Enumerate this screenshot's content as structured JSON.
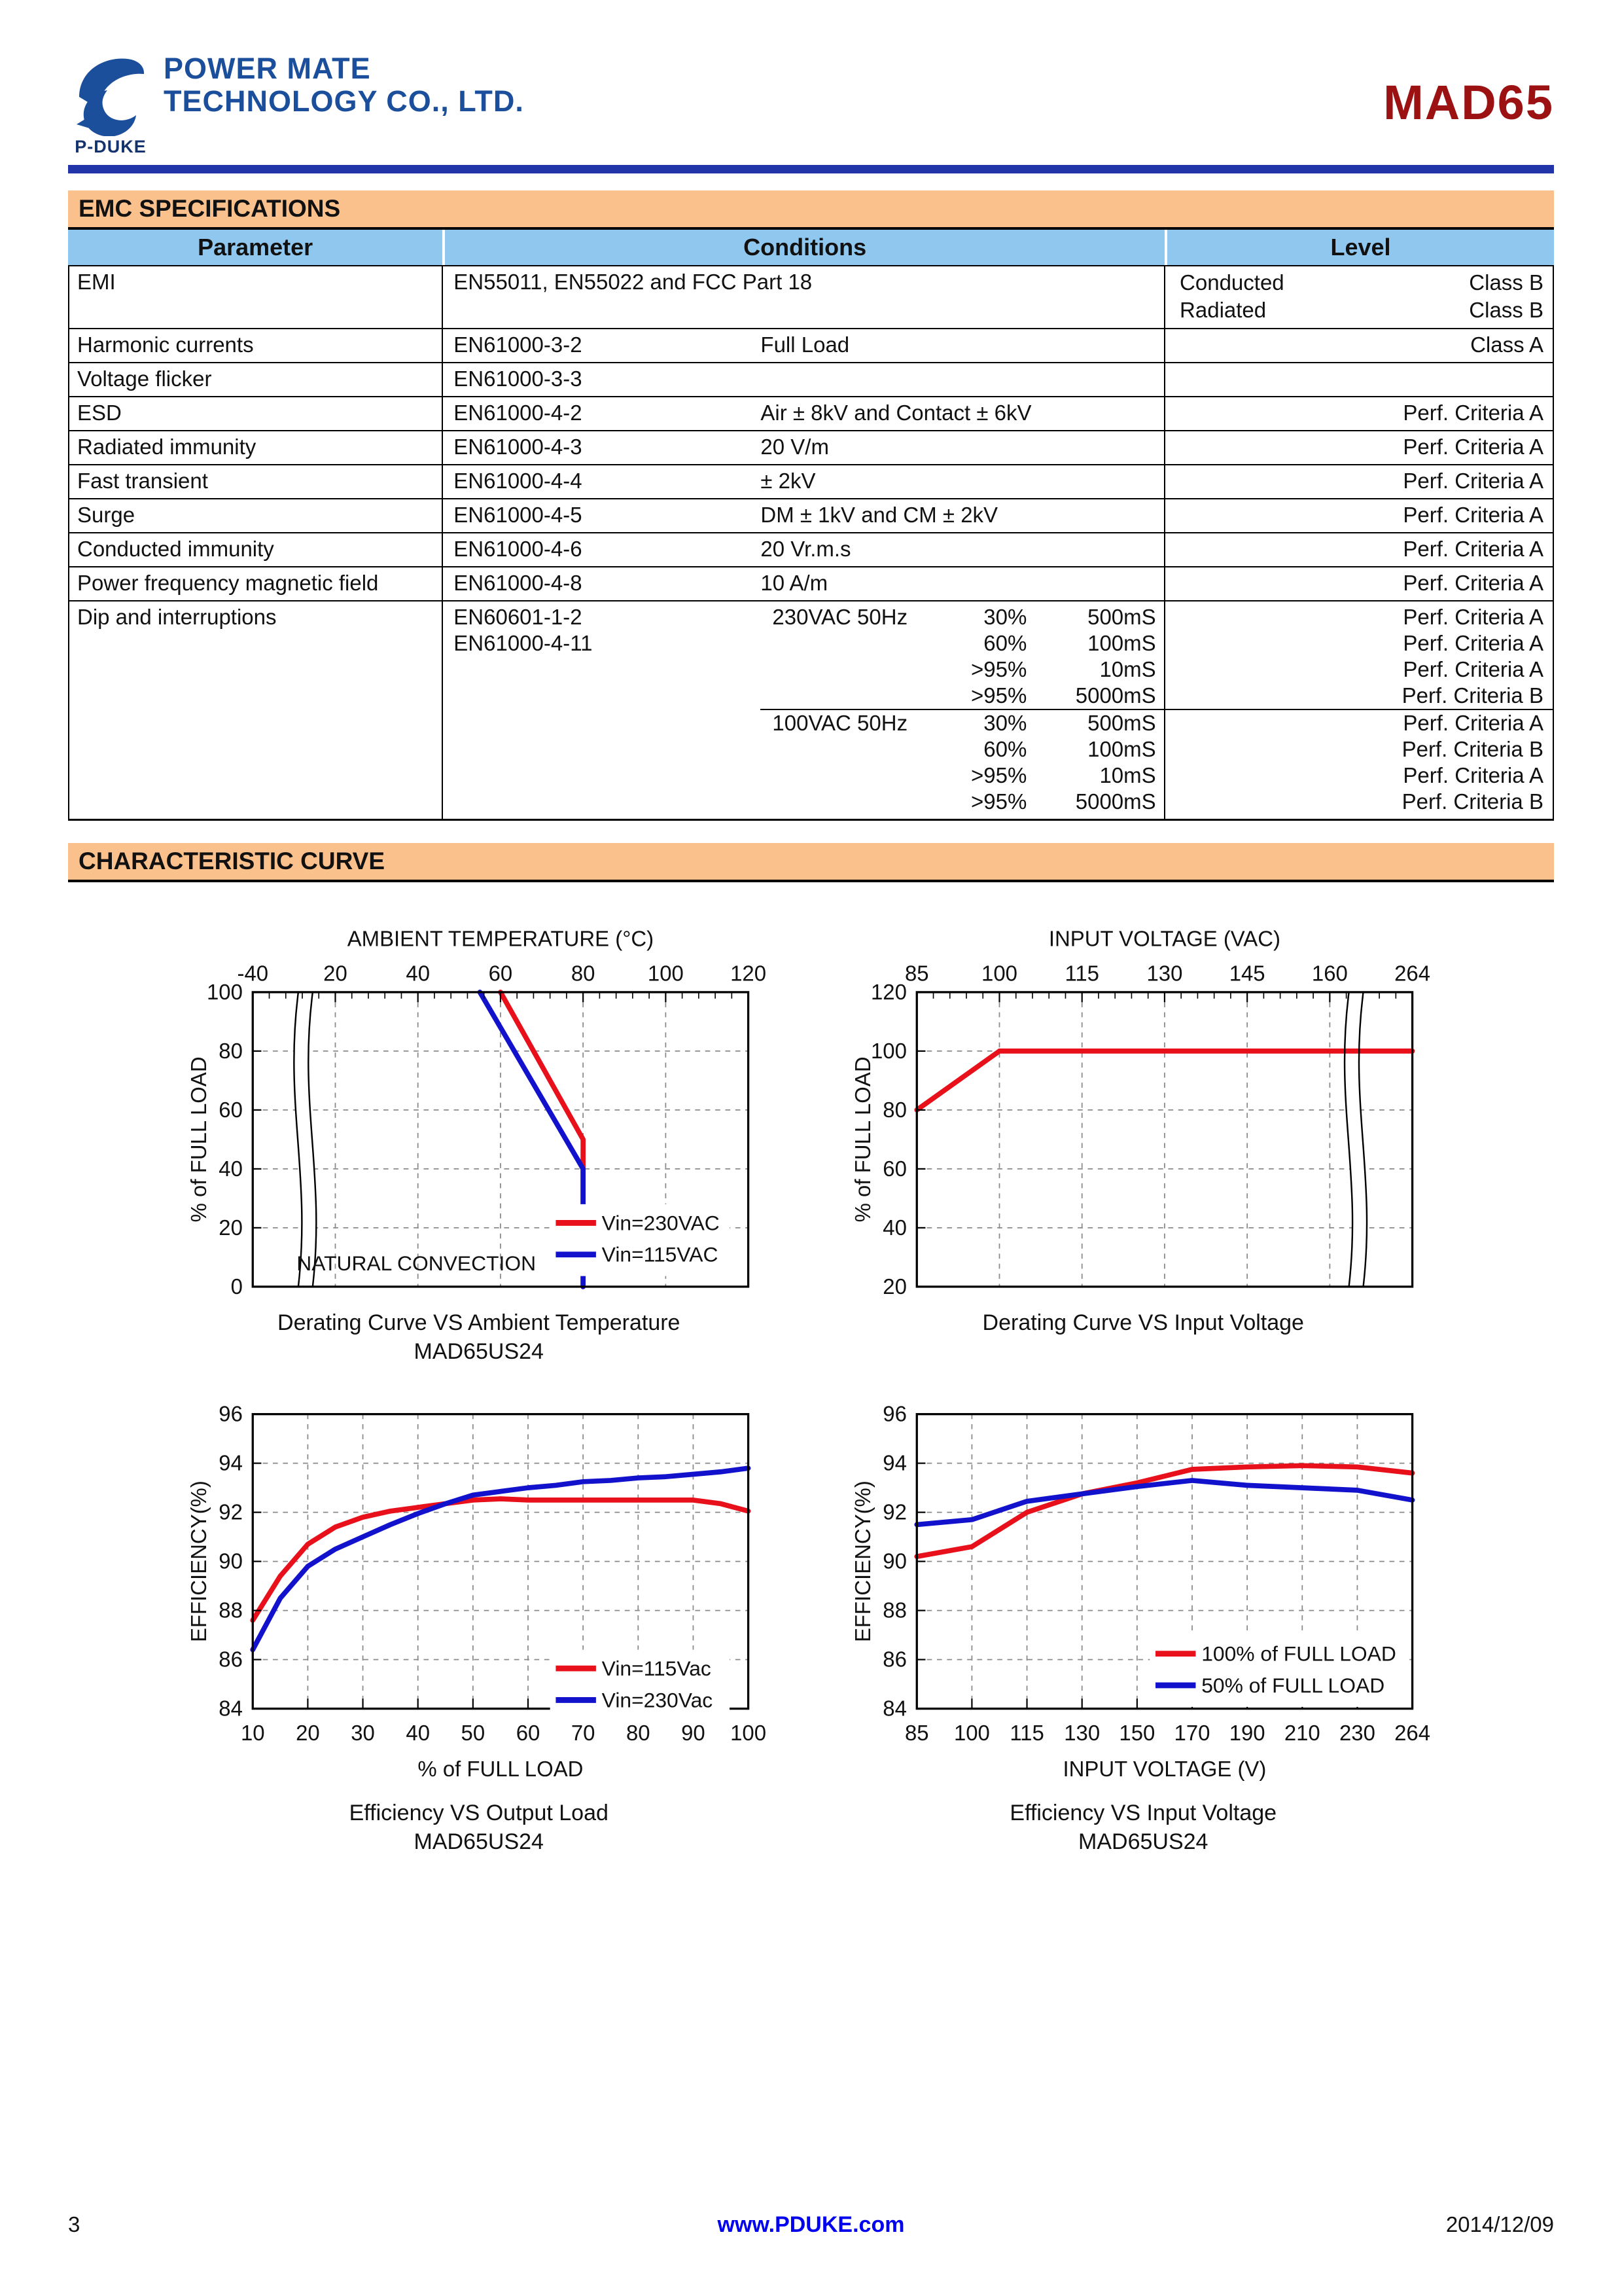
{
  "header": {
    "logo_mark": "P-DUKE",
    "logo_line1": "POWER MATE",
    "logo_line2": "TECHNOLOGY CO., LTD.",
    "product": "MAD65"
  },
  "colors": {
    "section_bar_orange": "#FAC18C",
    "table_header_blue": "#8FC7EE",
    "product_title_red": "#9C1111",
    "logo_blue": "#1B4E9B",
    "header_rule_blue": "#2135A8",
    "footer_link_blue": "#0000EE",
    "series_red": "#E8101A",
    "series_blue": "#1212CC"
  },
  "emc": {
    "section_title": "EMC SPECIFICATIONS",
    "columns": [
      "Parameter",
      "Conditions",
      "Level"
    ],
    "rows": [
      {
        "param": "EMI",
        "cond_span": "EN55011, EN55022 and FCC Part 18",
        "level_pairs": [
          [
            "Conducted",
            "Class B"
          ],
          [
            "Radiated",
            "Class B"
          ]
        ]
      },
      {
        "param": "Harmonic currents",
        "std": "EN61000-3-2",
        "detail": "Full Load",
        "level": "Class A"
      },
      {
        "param": "Voltage flicker",
        "std": "EN61000-3-3",
        "detail": "",
        "level": ""
      },
      {
        "param": "ESD",
        "std": "EN61000-4-2",
        "detail": "Air ± 8kV and Contact ± 6kV",
        "level": "Perf. Criteria A"
      },
      {
        "param": "Radiated immunity",
        "std": "EN61000-4-3",
        "detail": "20 V/m",
        "level": "Perf. Criteria A"
      },
      {
        "param": "Fast transient",
        "std": "EN61000-4-4",
        "detail": "± 2kV",
        "level": "Perf. Criteria A"
      },
      {
        "param": "Surge",
        "std": "EN61000-4-5",
        "detail": "DM ± 1kV and CM ± 2kV",
        "level": "Perf. Criteria A"
      },
      {
        "param": "Conducted immunity",
        "std": "EN61000-4-6",
        "detail": "20 Vr.m.s",
        "level": "Perf. Criteria A"
      },
      {
        "param": "Power frequency magnetic field",
        "std": "EN61000-4-8",
        "detail": "10 A/m",
        "level": "Perf. Criteria A"
      }
    ],
    "dip": {
      "param": "Dip and interruptions",
      "stds": [
        "EN60601-1-2",
        "EN61000-4-11"
      ],
      "blocks": [
        {
          "label": "230VAC 50Hz",
          "rows": [
            [
              "30%",
              "500mS",
              "Perf. Criteria A"
            ],
            [
              "60%",
              "100mS",
              "Perf. Criteria A"
            ],
            [
              ">95%",
              "10mS",
              "Perf. Criteria A"
            ],
            [
              ">95%",
              "5000mS",
              "Perf. Criteria B"
            ]
          ]
        },
        {
          "label": "100VAC 50Hz",
          "rows": [
            [
              "30%",
              "500mS",
              "Perf. Criteria A"
            ],
            [
              "60%",
              "100mS",
              "Perf. Criteria B"
            ],
            [
              ">95%",
              "10mS",
              "Perf. Criteria A"
            ],
            [
              ">95%",
              "5000mS",
              "Perf. Criteria B"
            ]
          ]
        }
      ]
    }
  },
  "curves": {
    "section_title": "CHARACTERISTIC CURVE"
  },
  "chart_data": [
    {
      "id": "derating-vs-ambient-temperature",
      "type": "line",
      "x_axis": "top",
      "minor_ticks": true,
      "grid": true,
      "xlabel": "AMBIENT TEMPERATURE (°C)",
      "ylabel": "% of FULL LOAD",
      "xticks": [
        -40,
        20,
        40,
        60,
        80,
        100,
        120
      ],
      "yticks": [
        0,
        20,
        40,
        60,
        80,
        100
      ],
      "ylim": [
        0,
        100
      ],
      "breaks": [
        0.105
      ],
      "series": [
        {
          "name": "Vin=230VAC",
          "color": "#E8101A",
          "points": [
            [
              60,
              100
            ],
            [
              80,
              50
            ],
            [
              80,
              0
            ]
          ]
        },
        {
          "name": "Vin=115VAC",
          "color": "#1212CC",
          "points": [
            [
              55,
              100
            ],
            [
              80,
              40
            ],
            [
              80,
              0
            ]
          ]
        }
      ],
      "legend": {
        "x": 0.6,
        "y": 0.72
      },
      "annotations": [
        {
          "text": "NATURAL CONVECTION",
          "x": 0.33,
          "y": 0.945
        }
      ],
      "caption": [
        "Derating Curve VS Ambient Temperature",
        "MAD65US24"
      ]
    },
    {
      "id": "derating-vs-input-voltage",
      "type": "line",
      "x_axis": "top",
      "minor_ticks": true,
      "grid": true,
      "xlabel": "INPUT VOLTAGE (VAC)",
      "ylabel": "% of FULL LOAD",
      "xticks": [
        85,
        100,
        115,
        130,
        145,
        160,
        264
      ],
      "yticks": [
        20,
        40,
        60,
        80,
        100,
        120
      ],
      "ylim": [
        20,
        120
      ],
      "breaks": [
        0.885
      ],
      "series": [
        {
          "name": "",
          "color": "#E8101A",
          "points": [
            [
              85,
              80
            ],
            [
              100,
              100
            ],
            [
              264,
              100
            ]
          ]
        }
      ],
      "caption": [
        "Derating Curve VS Input Voltage"
      ]
    },
    {
      "id": "efficiency-vs-output-load",
      "type": "line",
      "x_axis": "bottom",
      "grid": true,
      "xlabel": "% of FULL LOAD",
      "ylabel": "EFFICIENCY(%)",
      "xticks": [
        10,
        20,
        30,
        40,
        50,
        60,
        70,
        80,
        90,
        100
      ],
      "yticks": [
        84,
        86,
        88,
        90,
        92,
        94,
        96
      ],
      "ylim": [
        84,
        96
      ],
      "series": [
        {
          "name": "Vin=115Vac",
          "color": "#E8101A",
          "points": [
            [
              10,
              87.6
            ],
            [
              15,
              89.4
            ],
            [
              20,
              90.7
            ],
            [
              25,
              91.4
            ],
            [
              30,
              91.8
            ],
            [
              35,
              92.05
            ],
            [
              40,
              92.2
            ],
            [
              45,
              92.35
            ],
            [
              50,
              92.5
            ],
            [
              55,
              92.55
            ],
            [
              60,
              92.5
            ],
            [
              70,
              92.5
            ],
            [
              80,
              92.5
            ],
            [
              90,
              92.5
            ],
            [
              95,
              92.35
            ],
            [
              100,
              92.05
            ]
          ]
        },
        {
          "name": "Vin=230Vac",
          "color": "#1212CC",
          "points": [
            [
              10,
              86.4
            ],
            [
              15,
              88.5
            ],
            [
              20,
              89.8
            ],
            [
              25,
              90.5
            ],
            [
              30,
              91.0
            ],
            [
              35,
              91.5
            ],
            [
              40,
              91.95
            ],
            [
              45,
              92.35
            ],
            [
              50,
              92.7
            ],
            [
              55,
              92.85
            ],
            [
              60,
              93.0
            ],
            [
              65,
              93.1
            ],
            [
              70,
              93.25
            ],
            [
              75,
              93.3
            ],
            [
              80,
              93.4
            ],
            [
              85,
              93.45
            ],
            [
              90,
              93.55
            ],
            [
              95,
              93.65
            ],
            [
              100,
              93.8
            ]
          ]
        }
      ],
      "legend": {
        "x": 0.6,
        "y": 0.8
      },
      "caption": [
        "Efficiency VS Output Load",
        "MAD65US24"
      ]
    },
    {
      "id": "efficiency-vs-input-voltage",
      "type": "line",
      "x_axis": "bottom",
      "grid": true,
      "xlabel": "INPUT VOLTAGE (V)",
      "ylabel": "EFFICIENCY(%)",
      "xticks": [
        85,
        100,
        115,
        130,
        150,
        170,
        190,
        210,
        230,
        264
      ],
      "yticks": [
        84,
        86,
        88,
        90,
        92,
        94,
        96
      ],
      "ylim": [
        84,
        96
      ],
      "series": [
        {
          "name": "100% of FULL LOAD",
          "color": "#E8101A",
          "points": [
            [
              85,
              90.2
            ],
            [
              100,
              90.6
            ],
            [
              115,
              92.0
            ],
            [
              130,
              92.75
            ],
            [
              150,
              93.2
            ],
            [
              170,
              93.75
            ],
            [
              190,
              93.85
            ],
            [
              210,
              93.9
            ],
            [
              230,
              93.85
            ],
            [
              264,
              93.6
            ]
          ]
        },
        {
          "name": "50% of FULL LOAD",
          "color": "#1212CC",
          "points": [
            [
              85,
              91.5
            ],
            [
              100,
              91.7
            ],
            [
              115,
              92.45
            ],
            [
              130,
              92.75
            ],
            [
              150,
              93.05
            ],
            [
              170,
              93.3
            ],
            [
              190,
              93.1
            ],
            [
              210,
              93.0
            ],
            [
              230,
              92.9
            ],
            [
              264,
              92.5
            ]
          ]
        }
      ],
      "legend": {
        "x": 0.47,
        "y": 0.75
      },
      "caption": [
        "Efficiency VS Input Voltage",
        "MAD65US24"
      ]
    }
  ],
  "footer": {
    "page": "3",
    "site": "www.PDUKE.com",
    "date": "2014/12/09"
  }
}
